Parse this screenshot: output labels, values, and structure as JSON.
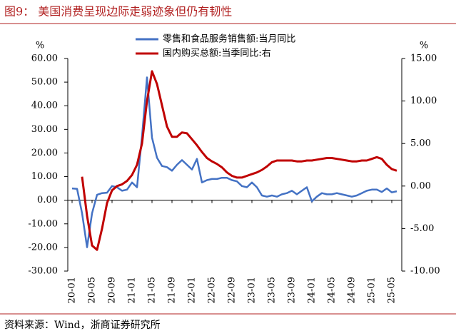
{
  "title": "图9：  美国消费呈现边际走弱迹象但仍有韧性",
  "source": "资料来源：Wind，浙商证券研究所",
  "chart_data": {
    "type": "line",
    "y_unit": "%",
    "y2_unit": "%",
    "categories": [
      "20-01",
      null,
      null,
      null,
      "20-05",
      null,
      null,
      null,
      "20-09",
      null,
      null,
      null,
      "21-01",
      null,
      null,
      null,
      "21-05",
      null,
      null,
      null,
      "21-09",
      null,
      null,
      null,
      "22-01",
      null,
      null,
      null,
      "22-05",
      null,
      null,
      null,
      "22-09",
      null,
      null,
      null,
      "23-01",
      null,
      null,
      null,
      "23-05",
      null,
      null,
      null,
      "23-09",
      null,
      null,
      null,
      "24-01",
      null,
      null,
      null,
      "24-05",
      null,
      null,
      null,
      "24-09",
      null,
      null,
      null,
      "25-01",
      null,
      null,
      null,
      "25-05",
      null
    ],
    "series": [
      {
        "name": "零售和食品服务销售额:当月同比",
        "color": "#4472c4",
        "axis": "y",
        "values": [
          5.0,
          4.8,
          -5.5,
          -19.9,
          -5.5,
          2.3,
          3.0,
          3.2,
          6.0,
          5.5,
          4.0,
          4.5,
          7.5,
          5.5,
          27,
          52,
          26.5,
          18,
          14.5,
          14,
          12.5,
          15,
          17,
          15,
          13,
          17.5,
          7.5,
          8.5,
          9,
          9,
          9.5,
          9.5,
          8.5,
          8,
          6,
          5.5,
          7.5,
          5.5,
          2.0,
          1.5,
          2.0,
          1.5,
          2.5,
          3.0,
          4.0,
          2.5,
          4.0,
          5.5,
          -0.5,
          1.5,
          3.0,
          2.5,
          2.5,
          3.0,
          2.5,
          2.0,
          1.5,
          2.0,
          3.0,
          4.0,
          4.5,
          4.5,
          3.5,
          5.0,
          3.3,
          3.8
        ]
      },
      {
        "name": "国内购买总额:当季同比:右",
        "color": "#c00000",
        "axis": "y2",
        "values": [
          null,
          null,
          1.1,
          -3.5,
          -7,
          -7.5,
          -5,
          -2,
          -0.5,
          0,
          0.2,
          0.6,
          1.3,
          2.5,
          5,
          10,
          13.5,
          12,
          9.5,
          7,
          5.8,
          5.8,
          6.3,
          6.2,
          5.5,
          4.8,
          4.0,
          3.3,
          2.9,
          2.6,
          2.2,
          1.6,
          1.2,
          1.0,
          1.0,
          1.2,
          1.4,
          1.6,
          1.9,
          2.3,
          2.8,
          3.0,
          3.0,
          3.0,
          3.0,
          2.9,
          2.9,
          3.0,
          3.0,
          3.1,
          3.2,
          3.3,
          3.3,
          3.2,
          3.1,
          3.0,
          2.9,
          2.9,
          3.0,
          3.0,
          3.2,
          3.4,
          3.2,
          2.5,
          2.0,
          1.8
        ]
      }
    ],
    "ylim": [
      -30,
      60
    ],
    "yticks": [
      {
        "value": -30,
        "label": "-30.00"
      },
      {
        "value": -20,
        "label": "-20.00"
      },
      {
        "value": -10,
        "label": "-10.00"
      },
      {
        "value": 0,
        "label": "0.00"
      },
      {
        "value": 10,
        "label": "10.00"
      },
      {
        "value": 20,
        "label": "20.00"
      },
      {
        "value": 30,
        "label": "30.00"
      },
      {
        "value": 40,
        "label": "40.00"
      },
      {
        "value": 50,
        "label": "50.00"
      },
      {
        "value": 60,
        "label": "60.00"
      }
    ],
    "y2lim": [
      -10,
      15
    ],
    "y2ticks": [
      {
        "value": -10,
        "label": "-10.00"
      },
      {
        "value": -5,
        "label": "-5.00"
      },
      {
        "value": 0,
        "label": "0.00"
      },
      {
        "value": 5,
        "label": "5.00"
      },
      {
        "value": 10,
        "label": "10.00"
      },
      {
        "value": 15,
        "label": "15.00"
      }
    ],
    "grid": false
  }
}
